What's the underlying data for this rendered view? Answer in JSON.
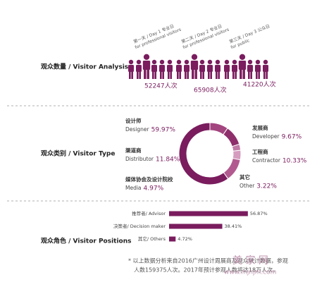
{
  "chart_data": [
    {
      "type": "pictogram",
      "title": "观众数量 / Visitor Analysis",
      "categories": [
        "第一天 / Day 1 专业日",
        "第二天 / Day 2 专业日",
        "第三天 / Day 3 公众日"
      ],
      "subcategories": [
        "for professional visitors",
        "for professional visitors",
        "for public"
      ],
      "values": [
        52247,
        65908,
        41220
      ],
      "value_labels": [
        "52247人次",
        "65908人次",
        "41220人次"
      ],
      "color": "#7a1c5e"
    },
    {
      "type": "donut",
      "title": "观众类别 / Visitor Type",
      "categories": [
        "Developer",
        "Contractor",
        "Other",
        "Media",
        "Distributor",
        "Designer"
      ],
      "categories_cn": [
        "发展商",
        "工程商",
        "其它",
        "媒体协会及设计院校",
        "渠道商",
        "设计师"
      ],
      "values": [
        9.67,
        10.33,
        3.22,
        4.97,
        11.84,
        59.97
      ],
      "value_labels": [
        "9.67%",
        "10.33%",
        "3.22%",
        "4.97%",
        "11.84%",
        "59.97%"
      ],
      "colors": [
        "#a3457f",
        "#8e2f6c",
        "#c07aa6",
        "#d49cbf",
        "#b25a90",
        "#7a1c5e"
      ]
    },
    {
      "type": "hbar",
      "title": "观众角色 / Visitor Positions",
      "categories": [
        "推荐者/ Advisor",
        "决策者/ Decision maker",
        "其它/ Others"
      ],
      "values": [
        56.87,
        38.41,
        4.72
      ],
      "value_labels": [
        "56.87%",
        "38.41%",
        "4.72%"
      ],
      "xlim": [
        0,
        60
      ],
      "color": "#7a1c5e"
    }
  ],
  "footnote": [
    "* 以上数据分析来自2016广州设计周展商及观众统计数据，参观",
    "人数159375人次。2017年预计参观人数将达18万人次。"
  ],
  "watermark": {
    "name": "美 家 网",
    "url": "www.mjnjm.com"
  }
}
